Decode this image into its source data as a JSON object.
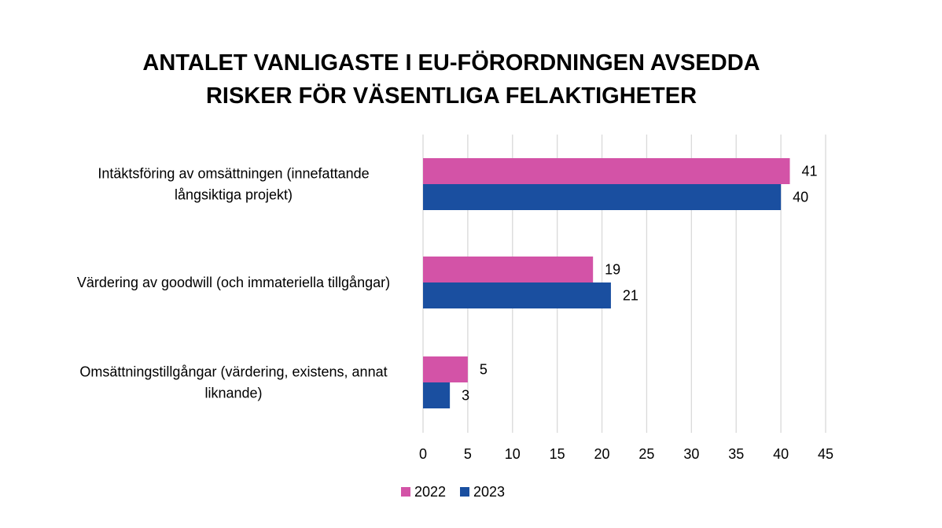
{
  "chart_data": {
    "type": "bar",
    "orientation": "horizontal",
    "title": [
      "ANTALET VANLIGASTE I EU-FÖRORDNINGEN AVSEDDA",
      "RISKER FÖR VÄSENTLIGA FELAKTIGHETER"
    ],
    "categories": [
      [
        "Intäktsföring av omsättningen (innefattande",
        "långsiktiga projekt)"
      ],
      [
        "Värdering av goodwill (och immateriella tillgångar)"
      ],
      [
        "Omsättningstillgångar (värdering, existens, annat",
        "liknande)"
      ]
    ],
    "series": [
      {
        "name": "2022",
        "values": [
          41,
          19,
          5
        ],
        "color": "#d353a7"
      },
      {
        "name": "2023",
        "values": [
          40,
          21,
          3
        ],
        "color": "#1a4fa0"
      }
    ],
    "xlim": [
      0,
      45
    ],
    "xticks": [
      0,
      5,
      10,
      15,
      20,
      25,
      30,
      35,
      40,
      45
    ],
    "grid": true,
    "legend_position": "bottom",
    "xlabel": "",
    "ylabel": ""
  }
}
